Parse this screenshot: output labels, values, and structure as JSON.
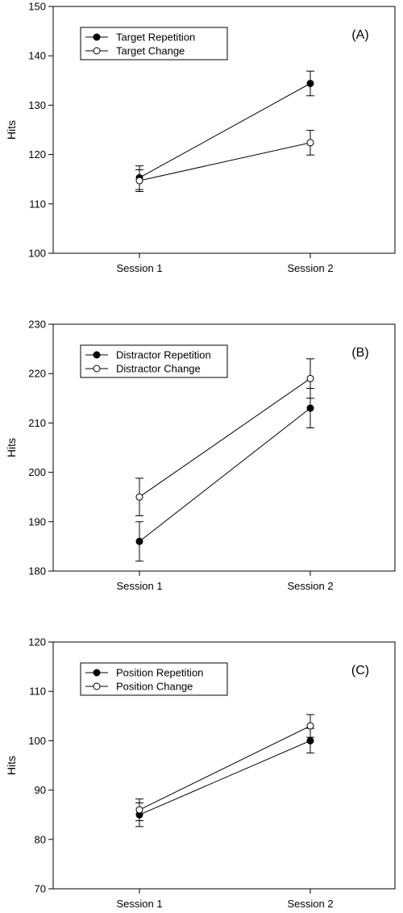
{
  "chart_data": [
    {
      "type": "line",
      "panel_label": "(A)",
      "ylabel": "Hits",
      "xlabel": "",
      "categories": [
        "Session 1",
        "Session 2"
      ],
      "ylim": [
        100,
        150
      ],
      "yticks": [
        100,
        110,
        120,
        130,
        140,
        150
      ],
      "yticklabels": [
        "100",
        "110",
        "120",
        "130",
        "140",
        "150"
      ],
      "legend_position": "top-left",
      "grid": false,
      "series": [
        {
          "name": "Target Repetition",
          "marker": "filled-circle",
          "values": [
            115.3,
            134.4
          ],
          "errors": [
            2.4,
            2.5
          ]
        },
        {
          "name": "Target Change",
          "marker": "open-circle",
          "values": [
            114.7,
            122.4
          ],
          "errors": [
            2.2,
            2.5
          ]
        }
      ]
    },
    {
      "type": "line",
      "panel_label": "(B)",
      "ylabel": "Hits",
      "xlabel": "",
      "categories": [
        "Session 1",
        "Session 2"
      ],
      "ylim": [
        180,
        230
      ],
      "yticks": [
        180,
        190,
        200,
        210,
        220,
        230
      ],
      "yticklabels": [
        "180",
        "190",
        "200",
        "210",
        "220",
        "230"
      ],
      "legend_position": "top-left",
      "grid": false,
      "series": [
        {
          "name": "Distractor Repetition",
          "marker": "filled-circle",
          "values": [
            186,
            213
          ],
          "errors": [
            4,
            4
          ]
        },
        {
          "name": "Distractor Change",
          "marker": "open-circle",
          "values": [
            195,
            219
          ],
          "errors": [
            3.8,
            4
          ]
        }
      ]
    },
    {
      "type": "line",
      "panel_label": "(C)",
      "ylabel": "Hits",
      "xlabel": "",
      "categories": [
        "Session 1",
        "Session 2"
      ],
      "ylim": [
        70,
        120
      ],
      "yticks": [
        70,
        80,
        90,
        100,
        110,
        120
      ],
      "yticklabels": [
        "70",
        "80",
        "90",
        "100",
        "110",
        "120"
      ],
      "legend_position": "top-left",
      "grid": false,
      "series": [
        {
          "name": "Position Repetition",
          "marker": "filled-circle",
          "values": [
            85,
            100
          ],
          "errors": [
            2.4,
            2.5
          ]
        },
        {
          "name": "Position Change",
          "marker": "open-circle",
          "values": [
            86,
            103
          ],
          "errors": [
            2.2,
            2.3
          ]
        }
      ]
    }
  ]
}
